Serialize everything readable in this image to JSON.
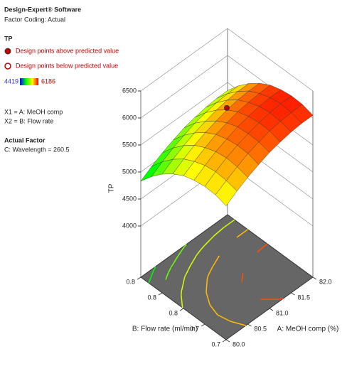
{
  "info": {
    "software": "Design-Expert® Software",
    "coding": "Factor Coding: Actual",
    "response": "TP",
    "legend_above": "Design points above predicted value",
    "legend_below": "Design points below predicted value",
    "x1": "X1 = A: MeOH comp",
    "x2": "X2 = B: Flow rate",
    "actual_factor_title": "Actual Factor",
    "actual_factor": "C: Wavelength = 260.5"
  },
  "chart_data": {
    "type": "surface",
    "z_label": "TP",
    "x_label": "A: MeOH comp (%)",
    "y_label": "B: Flow rate (ml/min)",
    "color_scale": {
      "min": 4419,
      "max": 6186,
      "colors": [
        "#0000ff",
        "#00ff00",
        "#ffff00",
        "#ff0000"
      ]
    },
    "x": [
      80,
      80.25,
      80.5,
      80.75,
      81,
      81.25,
      81.5,
      81.75,
      82
    ],
    "y": [
      0.7,
      0.7125,
      0.725,
      0.7375,
      0.75,
      0.7625,
      0.775,
      0.7875,
      0.8
    ],
    "values": [
      [
        5530,
        5660,
        5770,
        5860,
        5940,
        5990,
        6030,
        6050,
        6050
      ],
      [
        5590,
        5710,
        5820,
        5920,
        5990,
        6050,
        6080,
        6100,
        6110
      ],
      [
        5600,
        5730,
        5840,
        5930,
        6000,
        6060,
        6100,
        6120,
        6120
      ],
      [
        5570,
        5700,
        5810,
        5900,
        5980,
        6030,
        6070,
        6090,
        6090
      ],
      [
        5510,
        5630,
        5740,
        5840,
        5910,
        5970,
        6000,
        6020,
        6030
      ],
      [
        5400,
        5530,
        5640,
        5730,
        5800,
        5860,
        5900,
        5920,
        5920
      ],
      [
        5250,
        5380,
        5490,
        5580,
        5650,
        5710,
        5750,
        5770,
        5770
      ],
      [
        5060,
        5190,
        5300,
        5390,
        5470,
        5520,
        5560,
        5580,
        5580
      ],
      [
        4830,
        4960,
        5070,
        5160,
        5240,
        5290,
        5330,
        5350,
        5350
      ]
    ],
    "xlim": [
      80,
      82
    ],
    "ylim": [
      0.7,
      0.8
    ],
    "zlim": [
      4000,
      6500
    ],
    "xticks": [
      {
        "value": 80,
        "label": "80.0"
      },
      80.5,
      {
        "value": 81,
        "label": "81.0"
      },
      81.5,
      {
        "value": 82,
        "label": "82.0"
      }
    ],
    "yticks": [
      0.7,
      {
        "value": 0.725,
        "label": "0.7"
      },
      {
        "value": 0.75,
        "label": "0.8"
      },
      {
        "value": 0.775,
        "label": "0.8"
      },
      0.8
    ],
    "zticks": [
      4000,
      4500,
      5000,
      5500,
      6000,
      6500
    ],
    "contour_levels": [
      5000,
      5250,
      5500,
      5750,
      6000
    ],
    "design_points": [
      {
        "x": 81,
        "y": 0.75,
        "value": 6186
      }
    ]
  }
}
